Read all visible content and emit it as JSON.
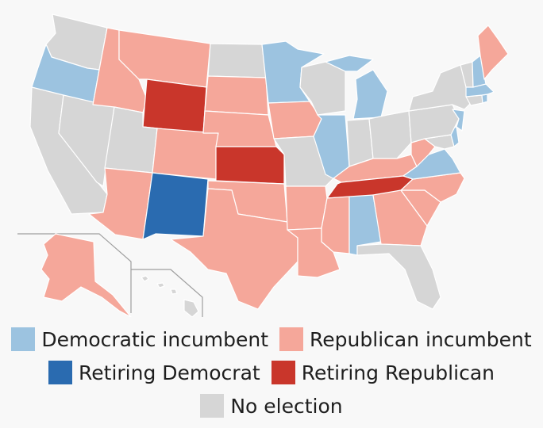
{
  "colors": {
    "democratic_incumbent": "#9cc3e0",
    "republican_incumbent": "#f5a79a",
    "retiring_democrat": "#2a6bb0",
    "retiring_republican": "#c9362b",
    "no_election": "#d6d6d6"
  },
  "legend": {
    "items": [
      {
        "category": "democratic_incumbent",
        "label": "Democratic incumbent"
      },
      {
        "category": "republican_incumbent",
        "label": "Republican incumbent"
      },
      {
        "category": "retiring_democrat",
        "label": "Retiring Democrat"
      },
      {
        "category": "retiring_republican",
        "label": "Retiring Republican"
      },
      {
        "category": "no_election",
        "label": "No election"
      }
    ]
  },
  "states": {
    "WA": "no_election",
    "OR": "democratic_incumbent",
    "CA": "no_election",
    "NV": "no_election",
    "ID": "republican_incumbent",
    "MT": "republican_incumbent",
    "WY": "retiring_republican",
    "UT": "no_election",
    "AZ": "republican_incumbent",
    "CO": "republican_incumbent",
    "NM": "retiring_democrat",
    "ND": "no_election",
    "SD": "republican_incumbent",
    "NE": "republican_incumbent",
    "KS": "retiring_republican",
    "OK": "republican_incumbent",
    "TX": "republican_incumbent",
    "MN": "democratic_incumbent",
    "IA": "republican_incumbent",
    "MO": "no_election",
    "AR": "republican_incumbent",
    "LA": "republican_incumbent",
    "WI": "no_election",
    "IL": "democratic_incumbent",
    "MI": "democratic_incumbent",
    "IN": "no_election",
    "OH": "no_election",
    "KY": "republican_incumbent",
    "TN": "retiring_republican",
    "MS": "republican_incumbent",
    "AL": "democratic_incumbent",
    "GA": "republican_incumbent",
    "FL": "no_election",
    "SC": "republican_incumbent",
    "NC": "republican_incumbent",
    "VA": "democratic_incumbent",
    "WV": "republican_incumbent",
    "PA": "no_election",
    "NY": "no_election",
    "NJ": "democratic_incumbent",
    "DE": "democratic_incumbent",
    "MD": "no_election",
    "CT": "no_election",
    "RI": "democratic_incumbent",
    "MA": "democratic_incumbent",
    "VT": "no_election",
    "NH": "democratic_incumbent",
    "ME": "republican_incumbent",
    "AK": "republican_incumbent",
    "HI": "no_election"
  }
}
